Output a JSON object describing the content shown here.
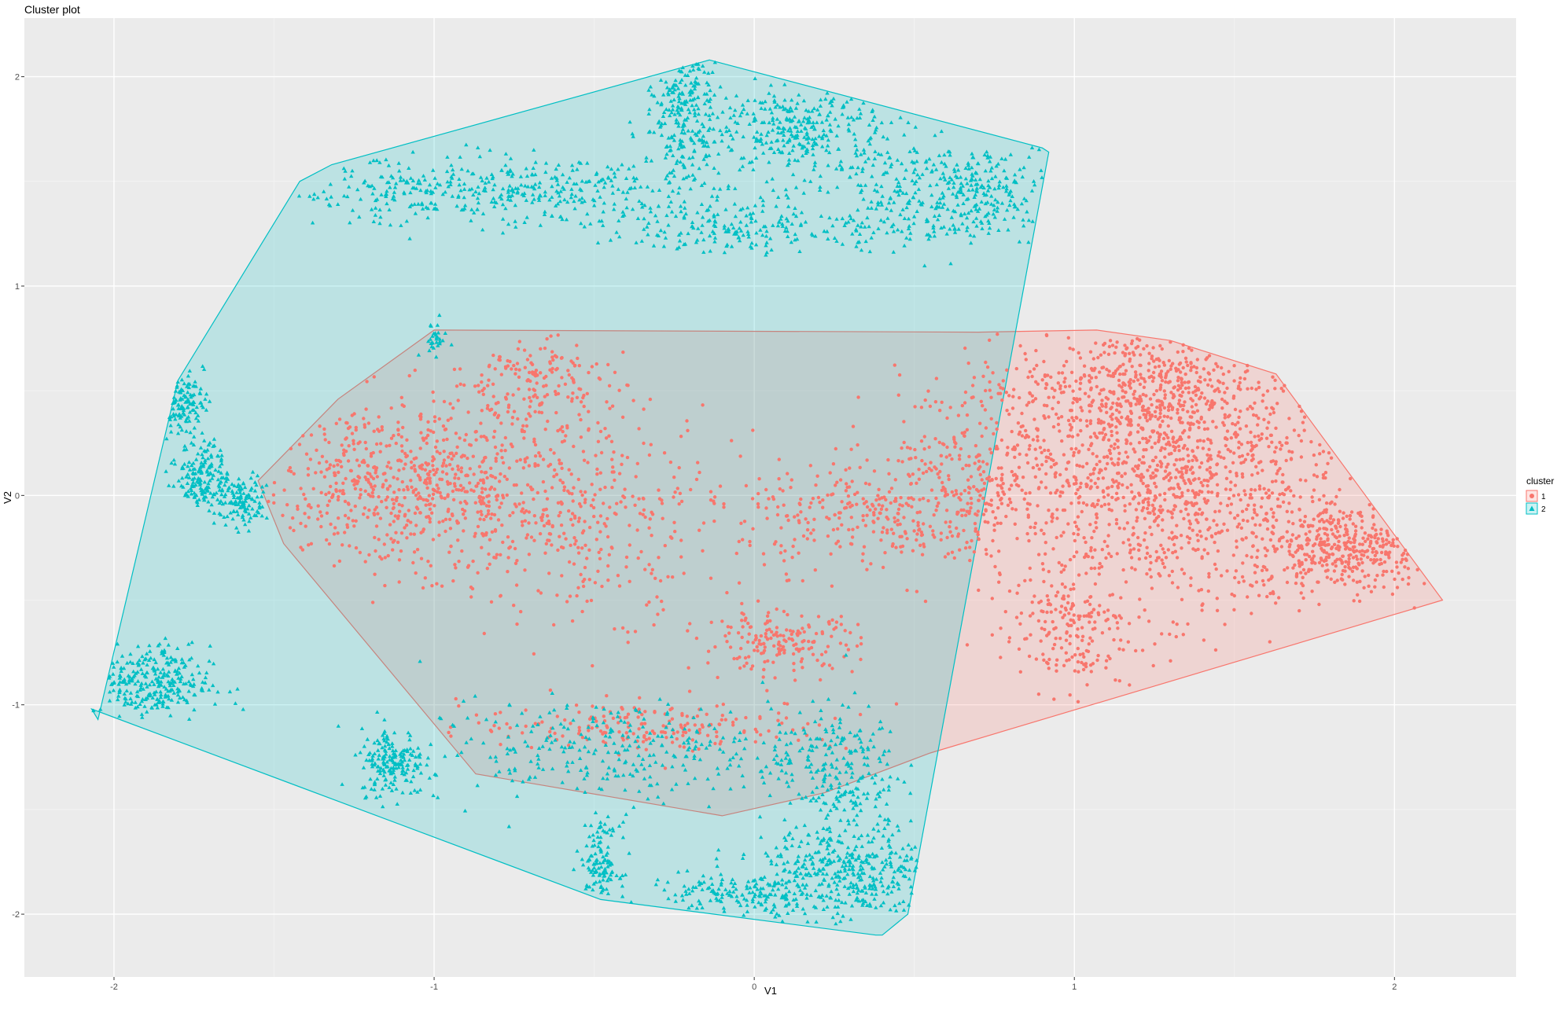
{
  "chart_data": {
    "type": "scatter",
    "title": "Cluster plot",
    "xlabel": "V1",
    "ylabel": "V2",
    "xlim": [
      -2.28,
      2.38
    ],
    "ylim": [
      -2.3,
      2.28
    ],
    "x_ticks": [
      -2,
      -1,
      0,
      1,
      2
    ],
    "x_tick_labels": [
      "-2",
      "-1",
      "0",
      "1",
      "2"
    ],
    "y_ticks": [
      -2,
      -1,
      0,
      1,
      2
    ],
    "y_tick_labels": [
      "-2",
      "-1",
      "0",
      "1",
      "2"
    ],
    "grid": true,
    "legend": {
      "title": "cluster",
      "position": "right"
    },
    "series": [
      {
        "name": "1",
        "marker": "circle",
        "color": "#F8766D",
        "hull": [
          [
            -1.0,
            0.79
          ],
          [
            0.7,
            0.78
          ],
          [
            1.07,
            0.79
          ],
          [
            1.3,
            0.74
          ],
          [
            1.63,
            0.58
          ],
          [
            2.15,
            -0.5
          ],
          [
            0.55,
            -1.23
          ],
          [
            0.22,
            -1.42
          ],
          [
            -0.1,
            -1.53
          ],
          [
            -0.87,
            -1.33
          ],
          [
            -1.47,
            -0.23
          ],
          [
            -1.55,
            0.07
          ],
          [
            -1.3,
            0.46
          ]
        ],
        "clusters": [
          {
            "cx": 1.3,
            "cy": 0.1,
            "sx": 0.28,
            "sy": 0.32,
            "n": 1300
          },
          {
            "cx": 1.2,
            "cy": 0.55,
            "sx": 0.18,
            "sy": 0.12,
            "n": 300
          },
          {
            "cx": 1.85,
            "cy": -0.25,
            "sx": 0.14,
            "sy": 0.1,
            "n": 380
          },
          {
            "cx": 0.97,
            "cy": -0.65,
            "sx": 0.1,
            "sy": 0.14,
            "n": 170
          },
          {
            "cx": 0.75,
            "cy": 0.2,
            "sx": 0.15,
            "sy": 0.2,
            "n": 240
          },
          {
            "cx": 0.4,
            "cy": -0.1,
            "sx": 0.22,
            "sy": 0.13,
            "n": 330
          },
          {
            "cx": -1.1,
            "cy": 0.05,
            "sx": 0.22,
            "sy": 0.2,
            "n": 650
          },
          {
            "cx": -0.55,
            "cy": -0.05,
            "sx": 0.22,
            "sy": 0.26,
            "n": 420
          },
          {
            "cx": -0.7,
            "cy": 0.55,
            "sx": 0.12,
            "sy": 0.1,
            "n": 150
          },
          {
            "cx": 0.08,
            "cy": -0.7,
            "sx": 0.12,
            "sy": 0.07,
            "n": 180
          },
          {
            "cx": -0.3,
            "cy": -1.1,
            "sx": 0.3,
            "sy": 0.06,
            "n": 200
          }
        ]
      },
      {
        "name": "2",
        "marker": "triangle",
        "color": "#00BFC4",
        "hull": [
          [
            -0.14,
            2.08
          ],
          [
            0.9,
            1.66
          ],
          [
            0.92,
            1.64
          ],
          [
            0.48,
            -2.0
          ],
          [
            0.4,
            -2.1
          ],
          [
            0.38,
            -2.1
          ],
          [
            -0.48,
            -1.93
          ],
          [
            -2.07,
            -1.02
          ],
          [
            -2.05,
            -1.07
          ],
          [
            -1.8,
            0.55
          ],
          [
            -1.42,
            1.5
          ],
          [
            -1.32,
            1.58
          ]
        ],
        "clusters": [
          {
            "cx": -0.8,
            "cy": 1.45,
            "sx": 0.35,
            "sy": 0.08,
            "n": 420
          },
          {
            "cx": 0.0,
            "cy": 1.28,
            "sx": 0.25,
            "sy": 0.06,
            "n": 200
          },
          {
            "cx": 0.6,
            "cy": 1.45,
            "sx": 0.2,
            "sy": 0.12,
            "n": 380
          },
          {
            "cx": 0.15,
            "cy": 1.75,
            "sx": 0.13,
            "sy": 0.12,
            "n": 300
          },
          {
            "cx": -0.22,
            "cy": 1.85,
            "sx": 0.06,
            "sy": 0.17,
            "n": 230
          },
          {
            "cx": -1.8,
            "cy": 0.45,
            "sx": 0.04,
            "sy": 0.07,
            "n": 110
          },
          {
            "cx": -1.72,
            "cy": 0.1,
            "sx": 0.04,
            "sy": 0.08,
            "n": 170
          },
          {
            "cx": -1.6,
            "cy": -0.03,
            "sx": 0.04,
            "sy": 0.06,
            "n": 120
          },
          {
            "cx": -1.9,
            "cy": -0.9,
            "sx": 0.1,
            "sy": 0.09,
            "n": 280
          },
          {
            "cx": -1.13,
            "cy": -1.27,
            "sx": 0.05,
            "sy": 0.08,
            "n": 180
          },
          {
            "cx": -0.45,
            "cy": -1.22,
            "sx": 0.3,
            "sy": 0.12,
            "n": 300
          },
          {
            "cx": 0.25,
            "cy": -1.3,
            "sx": 0.1,
            "sy": 0.15,
            "n": 220
          },
          {
            "cx": 0.3,
            "cy": -1.8,
            "sx": 0.14,
            "sy": 0.12,
            "n": 400
          },
          {
            "cx": -0.06,
            "cy": -1.9,
            "sx": 0.14,
            "sy": 0.05,
            "n": 150
          },
          {
            "cx": -0.48,
            "cy": -1.77,
            "sx": 0.03,
            "sy": 0.1,
            "n": 120
          },
          {
            "cx": -1.0,
            "cy": 0.75,
            "sx": 0.02,
            "sy": 0.04,
            "n": 30
          }
        ]
      }
    ]
  }
}
